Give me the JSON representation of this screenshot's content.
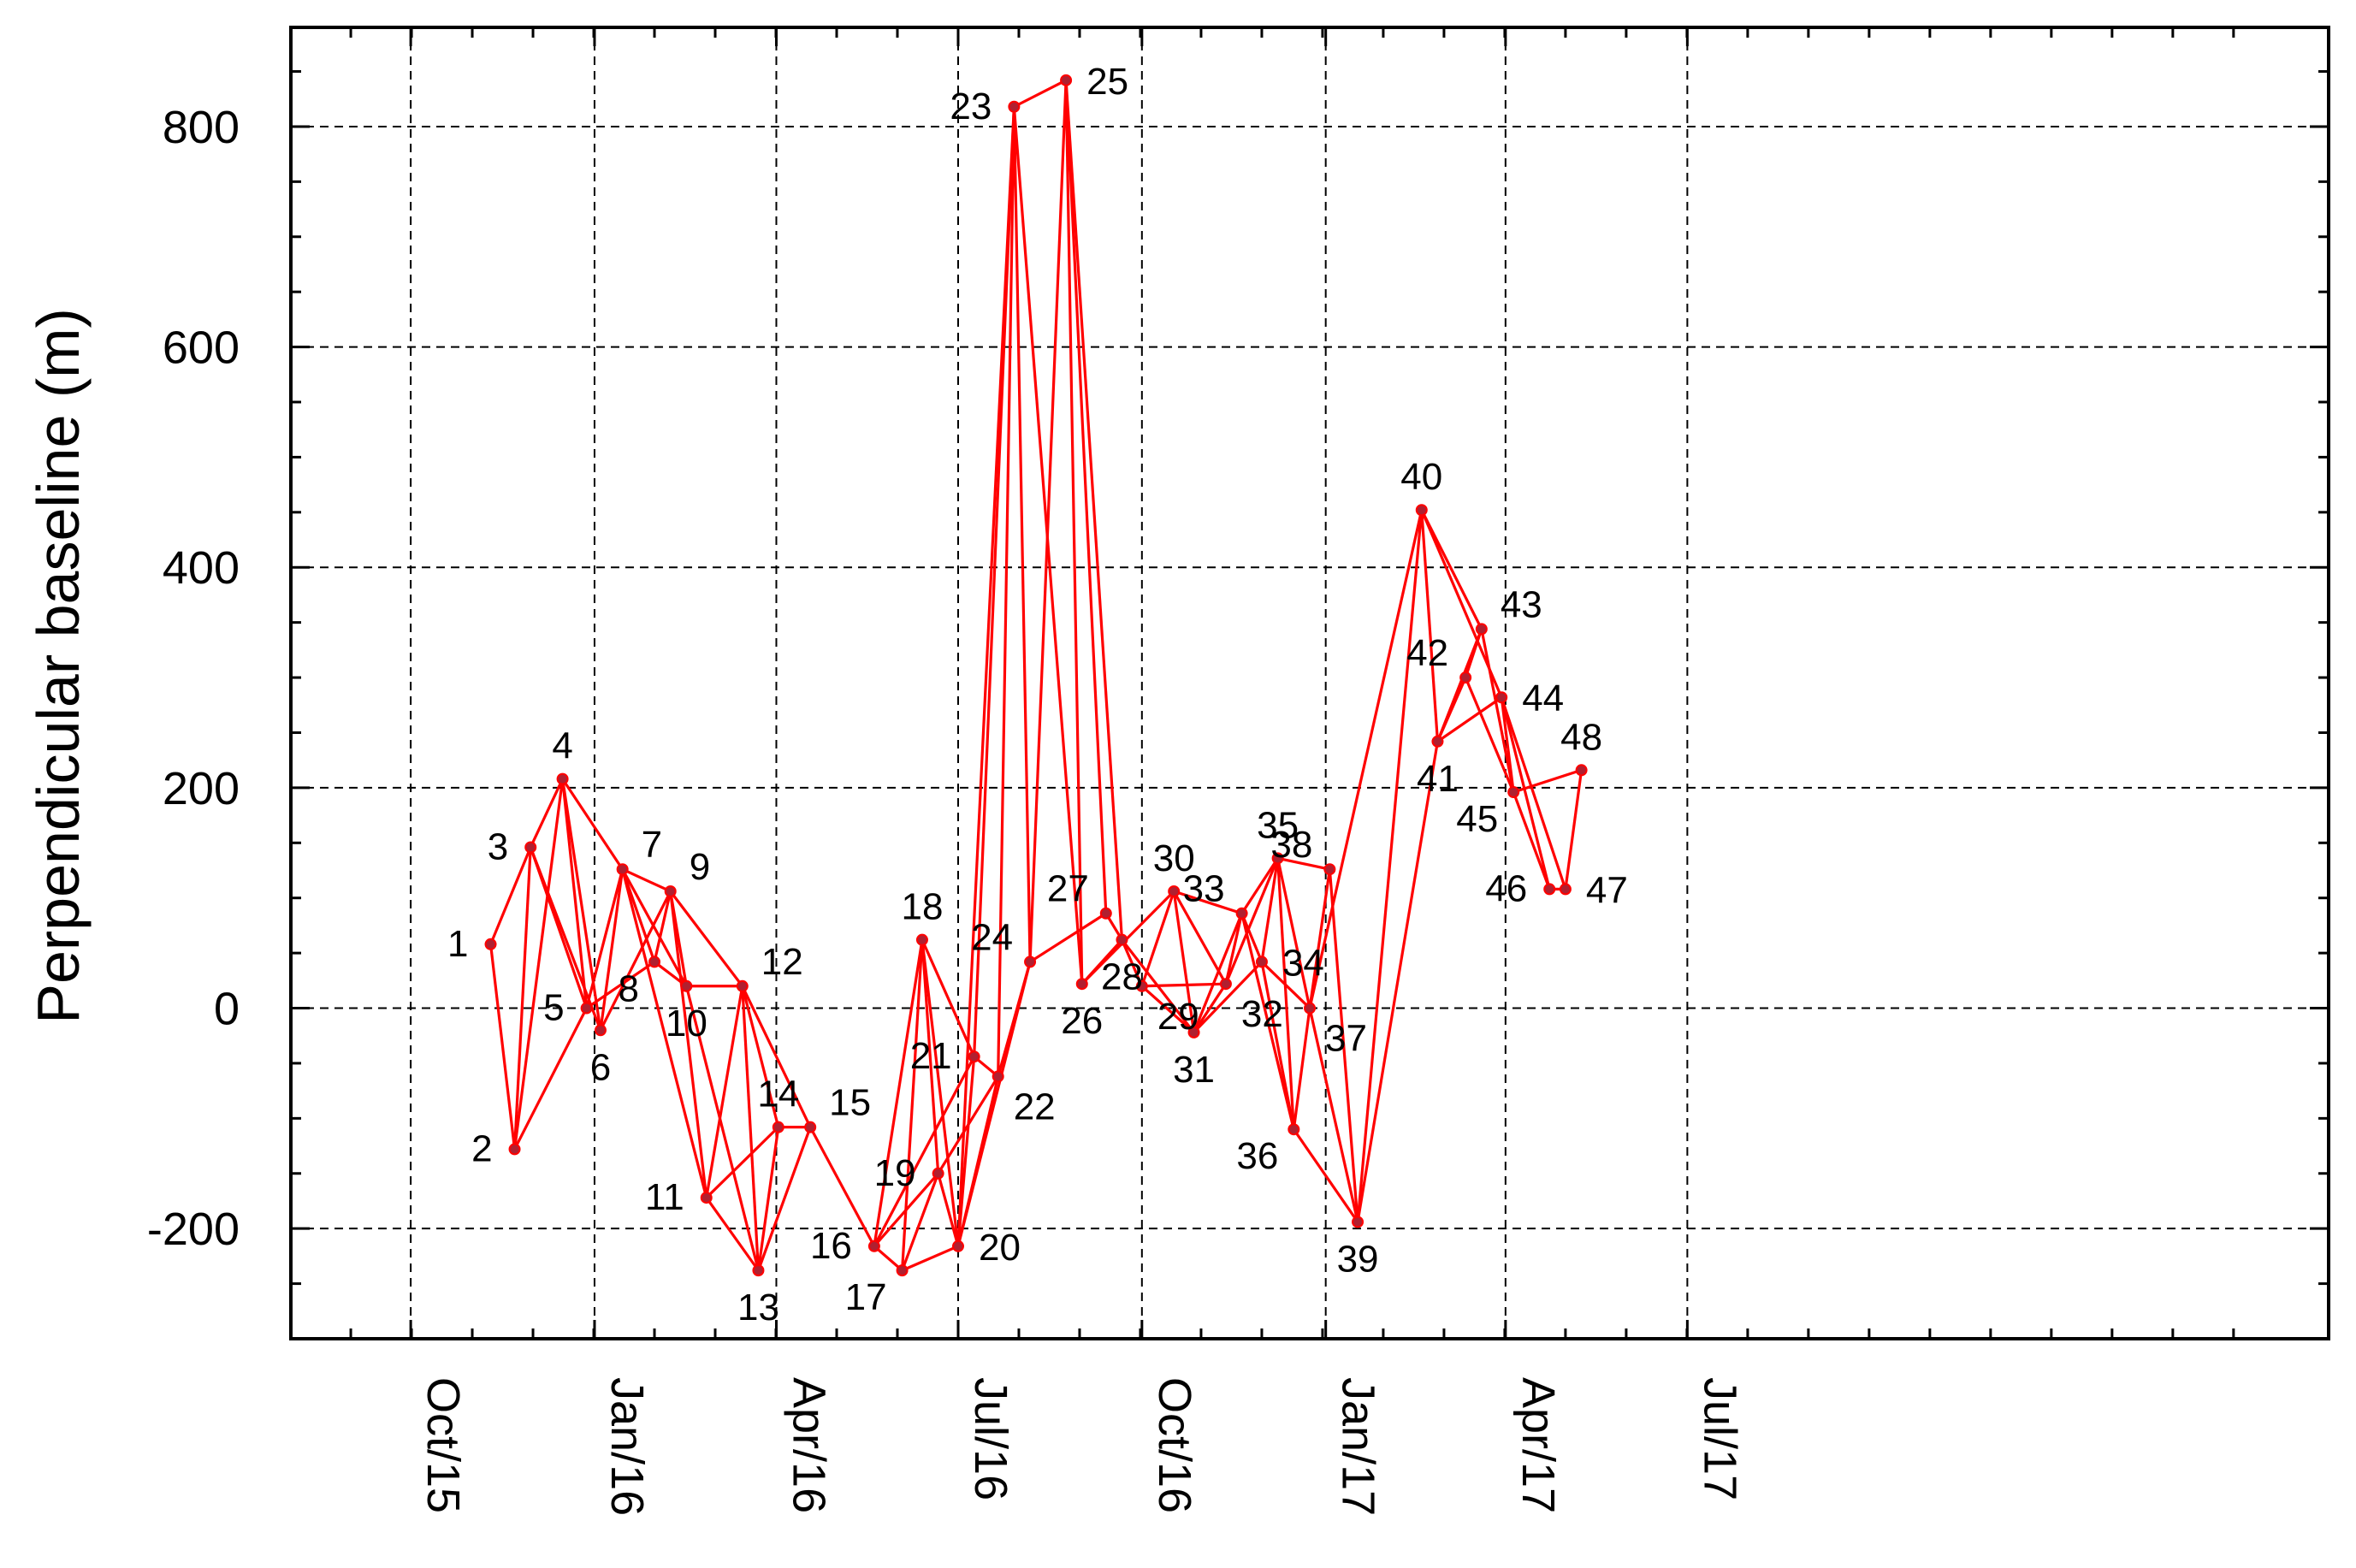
{
  "chart_data": {
    "type": "scatter",
    "title": "",
    "xlabel": "",
    "ylabel": "Perpendicular baseline (m)",
    "ylim": [
      -300,
      890
    ],
    "xlim_days": [
      -60,
      960
    ],
    "x_unit": "days since 2015-10-01",
    "y_ticks": [
      {
        "value": -200,
        "label": "-200"
      },
      {
        "value": 0,
        "label": "0"
      },
      {
        "value": 200,
        "label": "200"
      },
      {
        "value": 400,
        "label": "400"
      },
      {
        "value": 600,
        "label": "600"
      },
      {
        "value": 800,
        "label": "800"
      }
    ],
    "x_ticks": [
      {
        "value": 0,
        "label": "Oct/15"
      },
      {
        "value": 92,
        "label": "Jan/16"
      },
      {
        "value": 183,
        "label": "Apr/16"
      },
      {
        "value": 274,
        "label": "Jul/16"
      },
      {
        "value": 366,
        "label": "Oct/16"
      },
      {
        "value": 458,
        "label": "Jan/17"
      },
      {
        "value": 548,
        "label": "Apr/17"
      },
      {
        "value": 639,
        "label": "Jul/17"
      }
    ],
    "grid": true,
    "colors": {
      "line": "#ff0000",
      "point": "#b02030",
      "axis": "#000000"
    },
    "points": [
      {
        "id": 1,
        "label": "1",
        "x": 40,
        "y": 58
      },
      {
        "id": 2,
        "label": "2",
        "x": 52,
        "y": -128
      },
      {
        "id": 3,
        "label": "3",
        "x": 60,
        "y": 146
      },
      {
        "id": 4,
        "label": "4",
        "x": 76,
        "y": 208
      },
      {
        "id": 5,
        "label": "5",
        "x": 88,
        "y": 0
      },
      {
        "id": 6,
        "label": "6",
        "x": 95,
        "y": -20
      },
      {
        "id": 7,
        "label": "7",
        "x": 106,
        "y": 126
      },
      {
        "id": 8,
        "label": "8",
        "x": 122,
        "y": 42
      },
      {
        "id": 9,
        "label": "9",
        "x": 130,
        "y": 106
      },
      {
        "id": 10,
        "label": "10",
        "x": 138,
        "y": 20
      },
      {
        "id": 11,
        "label": "11",
        "x": 148,
        "y": -172
      },
      {
        "id": 12,
        "label": "12",
        "x": 166,
        "y": 20
      },
      {
        "id": 13,
        "label": "13",
        "x": 174,
        "y": -238
      },
      {
        "id": 14,
        "label": "14",
        "x": 184,
        "y": -108
      },
      {
        "id": 15,
        "label": "15",
        "x": 200,
        "y": -108
      },
      {
        "id": 16,
        "label": "16",
        "x": 232,
        "y": -216
      },
      {
        "id": 17,
        "label": "17",
        "x": 246,
        "y": -238
      },
      {
        "id": 18,
        "label": "18",
        "x": 256,
        "y": 62
      },
      {
        "id": 19,
        "label": "19",
        "x": 264,
        "y": -150
      },
      {
        "id": 20,
        "label": "20",
        "x": 274,
        "y": -216
      },
      {
        "id": 21,
        "label": "21",
        "x": 282,
        "y": -44
      },
      {
        "id": 22,
        "label": "22",
        "x": 294,
        "y": -62
      },
      {
        "id": 23,
        "label": "23",
        "x": 302,
        "y": 818
      },
      {
        "id": 24,
        "label": "24",
        "x": 310,
        "y": 42
      },
      {
        "id": 25,
        "label": "25",
        "x": 328,
        "y": 842
      },
      {
        "id": 26,
        "label": "26",
        "x": 336,
        "y": 22
      },
      {
        "id": 27,
        "label": "27",
        "x": 348,
        "y": 86
      },
      {
        "id": 28,
        "label": "28",
        "x": 356,
        "y": 62
      },
      {
        "id": 29,
        "label": "29",
        "x": 366,
        "y": 20
      },
      {
        "id": 30,
        "label": "30",
        "x": 382,
        "y": 106
      },
      {
        "id": 31,
        "label": "31",
        "x": 392,
        "y": -22
      },
      {
        "id": 32,
        "label": "32",
        "x": 408,
        "y": 22
      },
      {
        "id": 33,
        "label": "33",
        "x": 416,
        "y": 86
      },
      {
        "id": 34,
        "label": "34",
        "x": 426,
        "y": 42
      },
      {
        "id": 35,
        "label": "35",
        "x": 434,
        "y": 136
      },
      {
        "id": 36,
        "label": "36",
        "x": 442,
        "y": -110
      },
      {
        "id": 37,
        "label": "37",
        "x": 450,
        "y": 0
      },
      {
        "id": 38,
        "label": "38",
        "x": 460,
        "y": 126
      },
      {
        "id": 39,
        "label": "39",
        "x": 474,
        "y": -194
      },
      {
        "id": 40,
        "label": "40",
        "x": 506,
        "y": 452
      },
      {
        "id": 41,
        "label": "41",
        "x": 514,
        "y": 242
      },
      {
        "id": 42,
        "label": "42",
        "x": 528,
        "y": 300
      },
      {
        "id": 43,
        "label": "43",
        "x": 536,
        "y": 344
      },
      {
        "id": 44,
        "label": "44",
        "x": 546,
        "y": 282
      },
      {
        "id": 45,
        "label": "45",
        "x": 552,
        "y": 196
      },
      {
        "id": 46,
        "label": "46",
        "x": 570,
        "y": 108
      },
      {
        "id": 47,
        "label": "47",
        "x": 578,
        "y": 108
      },
      {
        "id": 48,
        "label": "48",
        "x": 586,
        "y": 216
      }
    ],
    "edges": [
      [
        1,
        2
      ],
      [
        1,
        3
      ],
      [
        2,
        3
      ],
      [
        2,
        4
      ],
      [
        2,
        5
      ],
      [
        3,
        4
      ],
      [
        3,
        5
      ],
      [
        3,
        6
      ],
      [
        4,
        5
      ],
      [
        4,
        6
      ],
      [
        4,
        7
      ],
      [
        5,
        7
      ],
      [
        5,
        8
      ],
      [
        6,
        7
      ],
      [
        6,
        9
      ],
      [
        7,
        8
      ],
      [
        7,
        9
      ],
      [
        7,
        10
      ],
      [
        7,
        11
      ],
      [
        8,
        9
      ],
      [
        8,
        10
      ],
      [
        9,
        10
      ],
      [
        9,
        11
      ],
      [
        9,
        12
      ],
      [
        10,
        12
      ],
      [
        10,
        13
      ],
      [
        11,
        12
      ],
      [
        11,
        13
      ],
      [
        11,
        14
      ],
      [
        12,
        13
      ],
      [
        12,
        14
      ],
      [
        12,
        15
      ],
      [
        13,
        14
      ],
      [
        13,
        15
      ],
      [
        14,
        15
      ],
      [
        15,
        16
      ],
      [
        16,
        17
      ],
      [
        16,
        18
      ],
      [
        16,
        19
      ],
      [
        16,
        21
      ],
      [
        17,
        18
      ],
      [
        17,
        19
      ],
      [
        17,
        20
      ],
      [
        18,
        19
      ],
      [
        18,
        20
      ],
      [
        18,
        21
      ],
      [
        19,
        20
      ],
      [
        19,
        22
      ],
      [
        20,
        21
      ],
      [
        20,
        22
      ],
      [
        20,
        23
      ],
      [
        20,
        24
      ],
      [
        21,
        22
      ],
      [
        21,
        23
      ],
      [
        22,
        23
      ],
      [
        22,
        24
      ],
      [
        23,
        24
      ],
      [
        23,
        25
      ],
      [
        23,
        26
      ],
      [
        24,
        25
      ],
      [
        24,
        27
      ],
      [
        25,
        26
      ],
      [
        25,
        27
      ],
      [
        25,
        28
      ],
      [
        26,
        28
      ],
      [
        26,
        30
      ],
      [
        27,
        28
      ],
      [
        28,
        29
      ],
      [
        28,
        31
      ],
      [
        29,
        30
      ],
      [
        29,
        31
      ],
      [
        29,
        32
      ],
      [
        30,
        31
      ],
      [
        30,
        32
      ],
      [
        30,
        33
      ],
      [
        31,
        32
      ],
      [
        31,
        33
      ],
      [
        31,
        34
      ],
      [
        32,
        33
      ],
      [
        32,
        35
      ],
      [
        33,
        34
      ],
      [
        33,
        35
      ],
      [
        33,
        36
      ],
      [
        34,
        35
      ],
      [
        34,
        36
      ],
      [
        34,
        37
      ],
      [
        35,
        36
      ],
      [
        35,
        37
      ],
      [
        35,
        38
      ],
      [
        36,
        37
      ],
      [
        36,
        39
      ],
      [
        37,
        38
      ],
      [
        37,
        39
      ],
      [
        37,
        40
      ],
      [
        38,
        39
      ],
      [
        39,
        40
      ],
      [
        39,
        41
      ],
      [
        40,
        41
      ],
      [
        40,
        43
      ],
      [
        40,
        44
      ],
      [
        41,
        42
      ],
      [
        41,
        43
      ],
      [
        41,
        44
      ],
      [
        42,
        43
      ],
      [
        42,
        45
      ],
      [
        43,
        45
      ],
      [
        44,
        45
      ],
      [
        44,
        46
      ],
      [
        44,
        47
      ],
      [
        45,
        46
      ],
      [
        45,
        48
      ],
      [
        46,
        47
      ],
      [
        47,
        48
      ]
    ],
    "label_offsets": {
      "1": [
        "left",
        0
      ],
      "2": [
        "left",
        1
      ],
      "3": [
        "left",
        0
      ],
      "4": [
        "top",
        0
      ],
      "5": [
        "left",
        0
      ],
      "6": [
        "below",
        0
      ],
      "7": [
        "top-right",
        0
      ],
      "8": [
        "below-left",
        0
      ],
      "9": [
        "top-right",
        0
      ],
      "10": [
        "below",
        0
      ],
      "11": [
        "left",
        0
      ],
      "12": [
        "top-right",
        0
      ],
      "13": [
        "below",
        0
      ],
      "14": [
        "top",
        0
      ],
      "15": [
        "top-right",
        0
      ],
      "16": [
        "left",
        0
      ],
      "17": [
        "below-left",
        0
      ],
      "18": [
        "top",
        0
      ],
      "19": [
        "left",
        0
      ],
      "20": [
        "right",
        0
      ],
      "21": [
        "left",
        0
      ],
      "22": [
        "below-right",
        0
      ],
      "23": [
        "left",
        0
      ],
      "24": [
        "top-left",
        0
      ],
      "25": [
        "right",
        0
      ],
      "26": [
        "below",
        0
      ],
      "27": [
        "top-left",
        0
      ],
      "28": [
        "below",
        0
      ],
      "29": [
        "below-right",
        0
      ],
      "30": [
        "top",
        0
      ],
      "31": [
        "below",
        0
      ],
      "32": [
        "below-right",
        0
      ],
      "33": [
        "top-left",
        0
      ],
      "34": [
        "right",
        0
      ],
      "35": [
        "top",
        0
      ],
      "36": [
        "below-left",
        0
      ],
      "37": [
        "below-right",
        0
      ],
      "38": [
        "top-left",
        0
      ],
      "39": [
        "below",
        0
      ],
      "40": [
        "top",
        0
      ],
      "41": [
        "below",
        0
      ],
      "42": [
        "top-left",
        0
      ],
      "43": [
        "top-right",
        0
      ],
      "44": [
        "right",
        0
      ],
      "45": [
        "below-left",
        0
      ],
      "46": [
        "left",
        0
      ],
      "47": [
        "right",
        0
      ],
      "48": [
        "top",
        0
      ]
    }
  }
}
